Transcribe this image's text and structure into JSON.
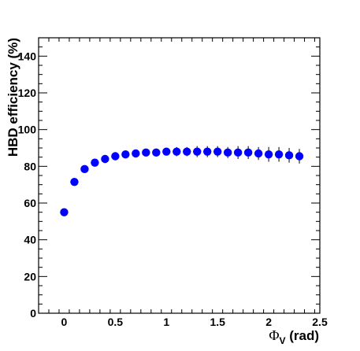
{
  "chart_data": {
    "type": "scatter",
    "xlabel": {
      "symbol": "Φ",
      "subscript": "V",
      "rest": " (rad)"
    },
    "ylabel": "HBD efficiency (%)",
    "xlim": [
      -0.25,
      2.5
    ],
    "ylim": [
      0,
      150
    ],
    "x_ticks": [
      0,
      0.5,
      1,
      1.5,
      2,
      2.5
    ],
    "x_tick_labels": [
      "0",
      "0.5",
      "1",
      "1.5",
      "2",
      "2.5"
    ],
    "y_ticks": [
      0,
      20,
      40,
      60,
      80,
      100,
      120,
      140
    ],
    "y_tick_labels": [
      "0",
      "20",
      "40",
      "60",
      "80",
      "100",
      "120",
      "140"
    ],
    "marker_color": "#0000ff",
    "series": [
      {
        "x": [
          0,
          0.1,
          0.2,
          0.3,
          0.4,
          0.5,
          0.6,
          0.7,
          0.8,
          0.9,
          1.0,
          1.1,
          1.2,
          1.3,
          1.4,
          1.5,
          1.6,
          1.7,
          1.8,
          1.9,
          2.0,
          2.1,
          2.2,
          2.3
        ],
        "y": [
          55,
          71.5,
          78.5,
          82,
          84,
          85.5,
          86.5,
          87,
          87.5,
          87.5,
          88,
          88,
          88,
          88,
          88,
          88,
          87.5,
          87.5,
          87.5,
          87,
          86.5,
          86.5,
          86,
          85.5
        ],
        "err": [
          0,
          0.5,
          0.5,
          0.8,
          1,
          1,
          1,
          1,
          1.5,
          1.5,
          2,
          2.5,
          2.5,
          3,
          3,
          3,
          3,
          3.5,
          3.5,
          3.5,
          4,
          4,
          4,
          4
        ]
      }
    ]
  }
}
